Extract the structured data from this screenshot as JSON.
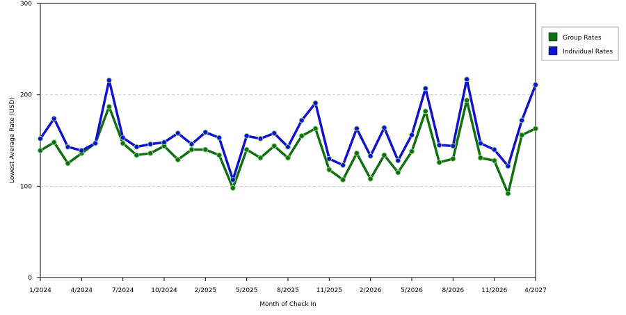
{
  "chart_data": {
    "type": "line",
    "x_label": "Month of Check In",
    "y_label": "Lowest Average Rate (USD)",
    "categories": [
      "1/2024",
      null,
      null,
      "4/2024",
      null,
      null,
      "7/2024",
      null,
      null,
      "10/2024",
      null,
      null,
      "2/2025",
      null,
      null,
      "5/2025",
      null,
      null,
      "8/2025",
      null,
      null,
      "11/2025",
      null,
      null,
      "2/2026",
      null,
      null,
      "5/2026",
      null,
      null,
      "8/2026",
      null,
      null,
      "11/2026",
      null,
      null,
      "4/2027"
    ],
    "series": [
      {
        "name": "Group Rates",
        "color": "#107010",
        "values": [
          139,
          148,
          125,
          136,
          147,
          187,
          147,
          134,
          136,
          144,
          129,
          140,
          140,
          134,
          98,
          140,
          131,
          144,
          131,
          155,
          163,
          118,
          107,
          136,
          108,
          134,
          115,
          138,
          182,
          126,
          130,
          194,
          131,
          128,
          92,
          156,
          163
        ]
      },
      {
        "name": "Individual Rates",
        "color": "#1010d0",
        "values": [
          152,
          174,
          143,
          139,
          147,
          216,
          153,
          143,
          146,
          148,
          158,
          146,
          159,
          153,
          107,
          155,
          152,
          158,
          143,
          172,
          191,
          130,
          123,
          163,
          133,
          164,
          128,
          156,
          207,
          145,
          144,
          217,
          147,
          140,
          122,
          172,
          211
        ]
      }
    ],
    "ylim": [
      0,
      300
    ],
    "yticks": [
      0,
      100,
      200,
      300
    ],
    "grid": true
  }
}
